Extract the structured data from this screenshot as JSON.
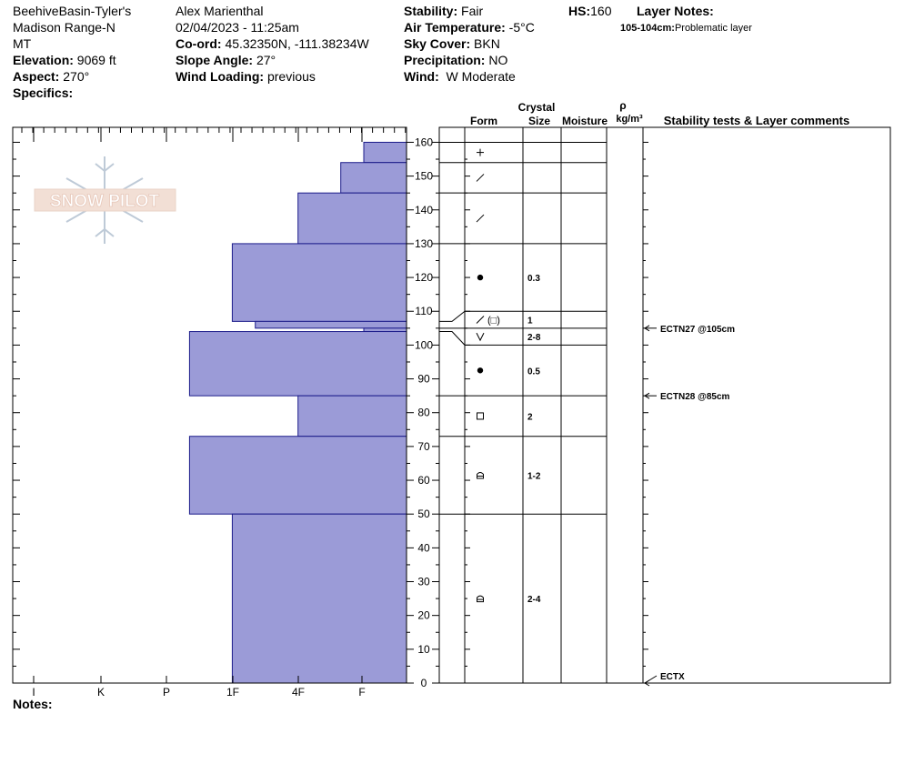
{
  "header": {
    "location_line1": "BeehiveBasin-Tyler's",
    "location_line2": "Madison Range-N",
    "location_line3": "MT",
    "elevation_label": "Elevation:",
    "elevation_value": "9069 ft",
    "aspect_label": "Aspect:",
    "aspect_value": "270°",
    "specifics_label": "Specifics:",
    "observer": "Alex Marienthal",
    "datetime": "02/04/2023 - 11:25am",
    "coord_label": "Co-ord:",
    "coord_value": "45.32350N, -111.38234W",
    "slope_label": "Slope Angle:",
    "slope_value": "27°",
    "wind_loading_label": "Wind Loading:",
    "wind_loading_value": "previous",
    "stability_label": "Stability:",
    "stability_value": "Fair",
    "air_temp_label": "Air Temperature:",
    "air_temp_value": "-5°C",
    "sky_label": "Sky Cover:",
    "sky_value": "BKN",
    "precip_label": "Precipitation:",
    "precip_value": "NO",
    "wind_label": "Wind:",
    "wind_value": "W Moderate",
    "hs_label": "HS:",
    "hs_value": "160",
    "layer_notes_label": "Layer Notes:",
    "layer_note_range": "105-104cm:",
    "layer_note_text": "Problematic layer"
  },
  "footer": {
    "notes_label": "Notes:"
  },
  "logo_text": "SNOW PILOT",
  "colors": {
    "bar_fill": "#9b9bd7",
    "bar_stroke": "#1c1c8a"
  },
  "columns": {
    "crystal": "Crystal",
    "form": "Form",
    "size": "Size",
    "moisture": "Moisture",
    "rho": "ρ",
    "density_unit": "kg/m³",
    "stability": "Stability tests & Layer comments"
  },
  "chart_data": {
    "type": "bar",
    "orientation": "horizontal",
    "y_axis": {
      "range": [
        0,
        165
      ],
      "ticks": [
        0,
        10,
        20,
        30,
        40,
        50,
        60,
        70,
        80,
        90,
        100,
        110,
        120,
        130,
        140,
        150,
        160
      ]
    },
    "hardness_scale": [
      "I",
      "K",
      "P",
      "1F",
      "4F",
      "F"
    ],
    "hardness_note": "bar extent from right edge; F=1 (least) to I=6 (most)",
    "layers": [
      {
        "top": 160,
        "bottom": 154,
        "hardness": 0.65,
        "form": "plus",
        "size": ""
      },
      {
        "top": 154,
        "bottom": 145,
        "hardness": 1.0,
        "form": "slash",
        "size": ""
      },
      {
        "top": 145,
        "bottom": 130,
        "hardness": 1.65,
        "form": "slash",
        "size": ""
      },
      {
        "top": 130,
        "bottom": 107,
        "hardness": 2.65,
        "form": "dot",
        "size": "0.3"
      },
      {
        "top": 107,
        "bottom": 105,
        "hardness": 2.3,
        "form": "slash-sq",
        "size": "1"
      },
      {
        "top": 105,
        "bottom": 104,
        "hardness": 0.65,
        "form": "",
        "size": ""
      },
      {
        "top": 104,
        "bottom": 85,
        "hardness": 3.3,
        "form": "vee",
        "size": "2-8"
      },
      {
        "top": 85,
        "bottom": 73,
        "hardness": 1.65,
        "form": "square",
        "size": "2"
      },
      {
        "top": 73,
        "bottom": 50,
        "hardness": 3.3,
        "form": "sq-dot",
        "size": "1-2"
      },
      {
        "top": 50,
        "bottom": 0,
        "hardness": 2.65,
        "form": "sq-dot",
        "size": "2-4"
      }
    ],
    "symbol_rows": [
      {
        "top": 160,
        "bottom": 154,
        "form": "plus",
        "size": ""
      },
      {
        "top": 154,
        "bottom": 145,
        "form": "slash",
        "size": ""
      },
      {
        "top": 145,
        "bottom": 130,
        "form": "slash",
        "size": ""
      },
      {
        "top": 130,
        "bottom": 110,
        "form": "dot",
        "size": "0.3"
      },
      {
        "top": 110,
        "bottom": 105,
        "form": "slash-sq",
        "size": "1"
      },
      {
        "top": 105,
        "bottom": 100,
        "form": "vee",
        "size": "2-8"
      },
      {
        "top": 100,
        "bottom": 85,
        "form": "dot",
        "size": "0.5"
      },
      {
        "top": 85,
        "bottom": 73,
        "form": "square",
        "size": "2"
      },
      {
        "top": 73,
        "bottom": 50,
        "form": "sq-dot",
        "size": "1-2"
      },
      {
        "top": 50,
        "bottom": 0,
        "form": "sq-dot",
        "size": "2-4"
      }
    ],
    "tests": [
      {
        "depth": 105,
        "label": "ECTN27 @105cm"
      },
      {
        "depth": 85,
        "label": "ECTN28 @85cm"
      },
      {
        "depth": 0,
        "label": "ECTX"
      }
    ]
  }
}
